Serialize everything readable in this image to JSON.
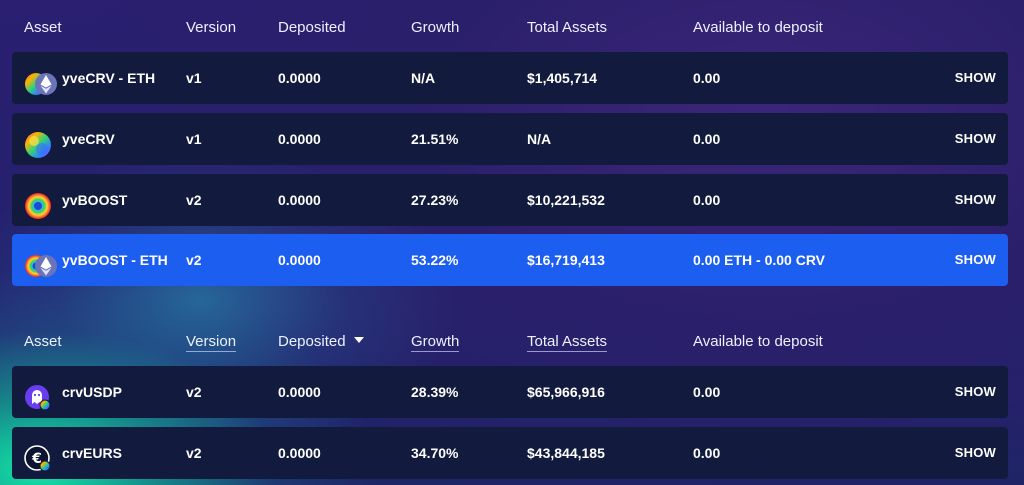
{
  "tables": [
    {
      "header": {
        "asset": "Asset",
        "version": "Version",
        "deposited": "Deposited",
        "growth": "Growth",
        "total_assets": "Total Assets",
        "available": "Available to deposit"
      },
      "rows": [
        {
          "asset": "yveCRV - ETH",
          "version": "v1",
          "deposited": "0.0000",
          "growth": "N/A",
          "total_assets": "$1,405,714",
          "available": "0.00",
          "action": "SHOW",
          "icon": "yvecrv-eth-pair-icon"
        },
        {
          "asset": "yveCRV",
          "version": "v1",
          "deposited": "0.0000",
          "growth": "21.51%",
          "total_assets": "N/A",
          "available": "0.00",
          "action": "SHOW",
          "icon": "yvecrv-icon"
        },
        {
          "asset": "yvBOOST",
          "version": "v2",
          "deposited": "0.0000",
          "growth": "27.23%",
          "total_assets": "$10,221,532",
          "available": "0.00",
          "action": "SHOW",
          "icon": "yvboost-icon"
        },
        {
          "asset": "yvBOOST - ETH",
          "version": "v2",
          "deposited": "0.0000",
          "growth": "53.22%",
          "total_assets": "$16,719,413",
          "available": "0.00 ETH - 0.00 CRV",
          "action": "SHOW",
          "icon": "yvboost-eth-pair-icon",
          "highlighted": true
        }
      ]
    },
    {
      "header": {
        "asset": "Asset",
        "version": "Version",
        "deposited": "Deposited",
        "growth": "Growth",
        "total_assets": "Total Assets",
        "available": "Available to deposit"
      },
      "sorted_by": "deposited",
      "sort_direction": "descending",
      "rows": [
        {
          "asset": "crvUSDP",
          "version": "v2",
          "deposited": "0.0000",
          "growth": "28.39%",
          "total_assets": "$65,966,916",
          "available": "0.00",
          "action": "SHOW",
          "icon": "crvusdp-icon"
        },
        {
          "asset": "crvEURS",
          "version": "v2",
          "deposited": "0.0000",
          "growth": "34.70%",
          "total_assets": "$43,844,185",
          "available": "0.00",
          "action": "SHOW",
          "icon": "crveurs-icon"
        }
      ]
    }
  ],
  "colors": {
    "row_background": "#121a3d",
    "highlight_row": "#1b5ef0",
    "page_background": "#2a1f70",
    "glow_accent": "#12f0aa"
  }
}
